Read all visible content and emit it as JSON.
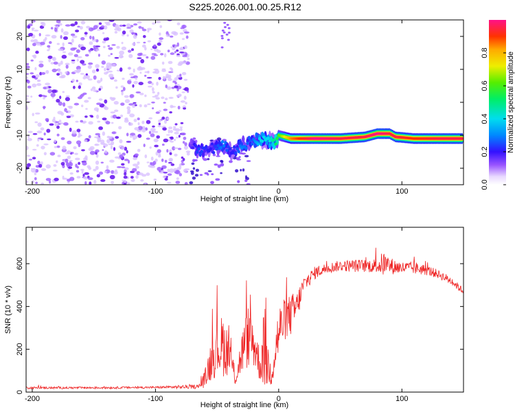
{
  "title": "S225.2026.001.00.25.R12",
  "colors": {
    "signal": "#ee2222",
    "frame": "#000000",
    "background": "#ffffff",
    "noise": "#9933ff"
  },
  "chart_data": [
    {
      "id": "spectrogram",
      "type": "heatmap",
      "xlabel": "Height of straight line (km)",
      "ylabel": "Frequency (Hz)",
      "xlim": [
        -205,
        150
      ],
      "ylim": [
        -25,
        25
      ],
      "xticks": [
        -200,
        -100,
        0,
        100
      ],
      "yticks": [
        -20,
        -10,
        0,
        10,
        20
      ],
      "colorbar": {
        "label": "Normalized spectral amplitude",
        "range": [
          0,
          1
        ],
        "ticks": [
          "0.0",
          "0.2",
          "0.4",
          "0.6",
          "0.8"
        ],
        "tick_values": [
          0.0,
          0.2,
          0.4,
          0.6,
          0.8
        ]
      },
      "noise_region_x": [
        -205,
        -73
      ],
      "signal_track": {
        "x": [
          -72,
          -65,
          -55,
          -45,
          -38,
          -30,
          -22,
          -15,
          -8,
          -3,
          0,
          10,
          30,
          50,
          70,
          80,
          90,
          95,
          110,
          130,
          150
        ],
        "freq": [
          -12,
          -15,
          -14,
          -13,
          -15,
          -13,
          -12,
          -11,
          -12,
          -12,
          -10,
          -11,
          -11,
          -11,
          -10.5,
          -9.5,
          -9.5,
          -10.5,
          -11,
          -11,
          -11
        ],
        "amplitude": [
          0.15,
          0.25,
          0.2,
          0.3,
          0.2,
          0.3,
          0.25,
          0.4,
          0.4,
          0.5,
          0.6,
          0.85,
          1.0,
          0.95,
          0.95,
          1.0,
          0.95,
          0.95,
          0.9,
          0.95,
          0.95
        ]
      }
    },
    {
      "id": "snr",
      "type": "line",
      "xlabel": "Height of straight line (km)",
      "ylabel": "SNR (10 * v/v)",
      "xlim": [
        -205,
        150
      ],
      "ylim": [
        0,
        770
      ],
      "xticks": [
        -200,
        -100,
        0,
        100
      ],
      "yticks": [
        0,
        200,
        400,
        600
      ],
      "series": [
        {
          "name": "SNR",
          "x": [
            -205,
            -150,
            -100,
            -65,
            -60,
            -55,
            -50,
            -45,
            -40,
            -35,
            -30,
            -25,
            -20,
            -15,
            -12,
            -10,
            -8,
            -5,
            0,
            5,
            10,
            15,
            20,
            30,
            40,
            50,
            60,
            70,
            80,
            85,
            90,
            100,
            110,
            120,
            130,
            140,
            150
          ],
          "base": [
            20,
            20,
            22,
            25,
            60,
            150,
            200,
            220,
            180,
            60,
            180,
            260,
            230,
            120,
            200,
            220,
            90,
            120,
            280,
            340,
            360,
            400,
            500,
            560,
            580,
            590,
            590,
            590,
            590,
            600,
            590,
            580,
            580,
            570,
            550,
            520,
            470
          ],
          "amp": [
            10,
            10,
            10,
            20,
            80,
            200,
            250,
            300,
            200,
            60,
            200,
            300,
            250,
            150,
            350,
            500,
            120,
            200,
            260,
            200,
            200,
            150,
            80,
            60,
            50,
            50,
            60,
            60,
            70,
            120,
            80,
            60,
            60,
            50,
            40,
            40,
            30
          ]
        }
      ]
    }
  ]
}
